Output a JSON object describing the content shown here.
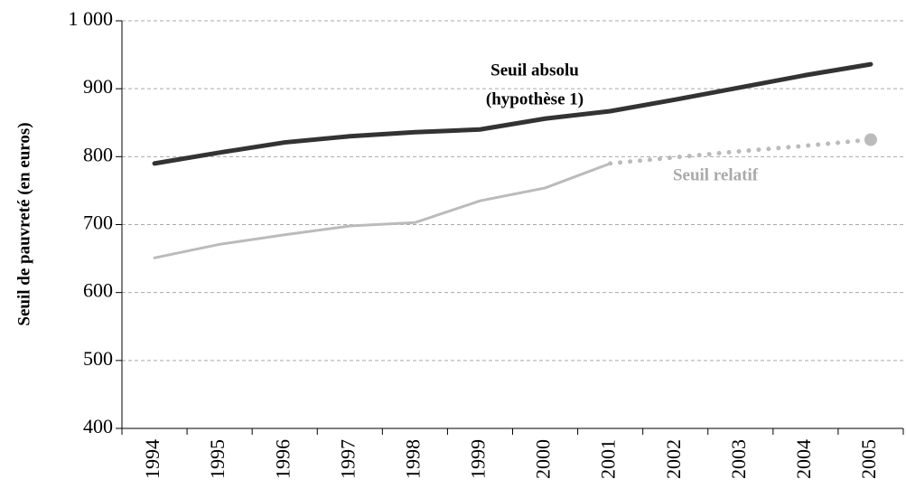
{
  "chart_data": {
    "type": "line",
    "y_label": "Seuil de pauvreté (en euros)",
    "categories": [
      "1994",
      "1995",
      "1996",
      "1997",
      "1998",
      "1999",
      "2000",
      "2001",
      "2002",
      "2003",
      "2004",
      "2005"
    ],
    "series": [
      {
        "color": "#333333",
        "dash": false,
        "values": [
          790,
          806,
          821,
          830,
          836,
          840,
          856,
          867,
          884,
          902,
          920,
          936
        ]
      },
      {
        "color": "#bbbbbb",
        "dash": false,
        "values": [
          651,
          671,
          685,
          698,
          703,
          735,
          754,
          790,
          null,
          null,
          null,
          null
        ]
      },
      {
        "color": "#bbbbbb",
        "dash": true,
        "end_marker": true,
        "values": [
          null,
          null,
          null,
          null,
          null,
          null,
          null,
          790,
          799,
          808,
          816,
          825
        ]
      }
    ],
    "annotations": [
      {
        "lines": [
          "Seuil absolu",
          "(hypothèse 1)"
        ],
        "color": "#000000",
        "at": [
          0,
          5.5
        ]
      },
      {
        "lines": [
          "Seuil relatif"
        ],
        "color": "#aaaaaa",
        "at": [
          2,
          8.3
        ]
      }
    ],
    "ylim": [
      400,
      1000
    ],
    "yticks": [
      400,
      500,
      600,
      700,
      800,
      900,
      {
        "value": 1000,
        "label": "1 000"
      }
    ],
    "grid": true
  }
}
